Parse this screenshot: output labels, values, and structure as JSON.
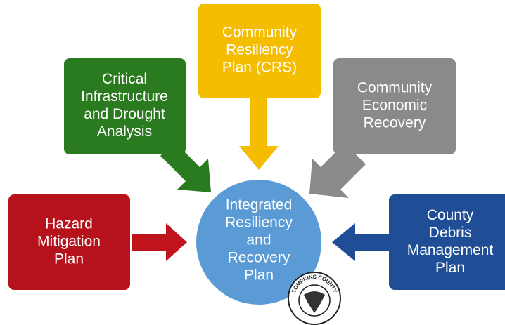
{
  "nodes": [
    {
      "label": [
        "Hazard",
        "Mitigation",
        "Plan"
      ]
    },
    {
      "label": [
        "Critical",
        "Infrastructure",
        "and Drought",
        "Analysis"
      ]
    },
    {
      "label": [
        "Community",
        "Resiliency",
        "Plan (CRS)"
      ]
    },
    {
      "label": [
        "Community",
        "Economic",
        "Recovery"
      ]
    },
    {
      "label": [
        "County",
        "Debris",
        "Management",
        "Plan"
      ]
    }
  ],
  "center": {
    "label": [
      "Integrated",
      "Resiliency",
      "and",
      "Recovery",
      "Plan"
    ]
  },
  "seal": {
    "text": "TOMPKINS COUNTY"
  }
}
